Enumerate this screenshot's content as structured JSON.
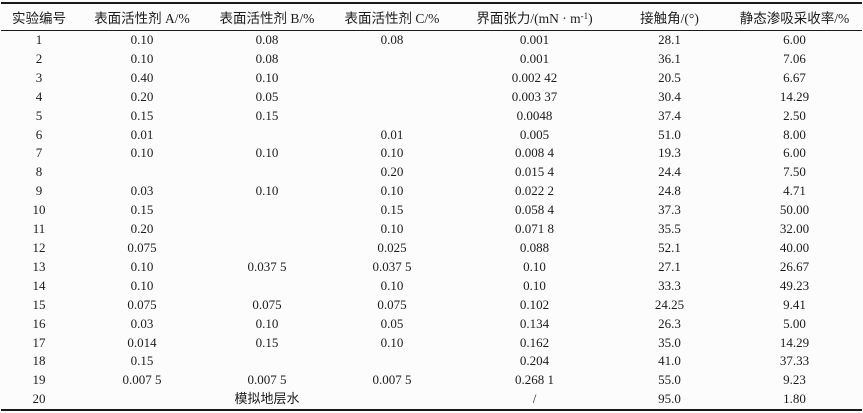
{
  "table": {
    "header": {
      "col_exp_no": "实验编号",
      "col_surfactant_a": "表面活性剂 A/%",
      "col_surfactant_b": "表面活性剂 B/%",
      "col_surfactant_c": "表面活性剂 C/%",
      "col_ift_prefix": "界面张力/(mN · m",
      "col_ift_sup": "-1",
      "col_ift_suffix": ")",
      "col_contact_angle": "接触角/(°)",
      "col_recovery": "静态渗吸采收率/%"
    },
    "rows": [
      [
        "1",
        "0.10",
        "0.08",
        "0.08",
        "0.001",
        "28.1",
        "6.00"
      ],
      [
        "2",
        "0.10",
        "0.08",
        "",
        "0.001",
        "36.1",
        "7.06"
      ],
      [
        "3",
        "0.40",
        "0.10",
        "",
        "0.002 42",
        "20.5",
        "6.67"
      ],
      [
        "4",
        "0.20",
        "0.05",
        "",
        "0.003 37",
        "30.4",
        "14.29"
      ],
      [
        "5",
        "0.15",
        "0.15",
        "",
        "0.0048",
        "37.4",
        "2.50"
      ],
      [
        "6",
        "0.01",
        "",
        "0.01",
        "0.005",
        "51.0",
        "8.00"
      ],
      [
        "7",
        "0.10",
        "0.10",
        "0.10",
        "0.008 4",
        "19.3",
        "6.00"
      ],
      [
        "8",
        "",
        "",
        "0.20",
        "0.015 4",
        "24.4",
        "7.50"
      ],
      [
        "9",
        "0.03",
        "0.10",
        "0.10",
        "0.022 2",
        "24.8",
        "4.71"
      ],
      [
        "10",
        "0.15",
        "",
        "0.15",
        "0.058 4",
        "37.3",
        "50.00"
      ],
      [
        "11",
        "0.20",
        "",
        "0.10",
        "0.071 8",
        "35.5",
        "32.00"
      ],
      [
        "12",
        "0.075",
        "",
        "0.025",
        "0.088",
        "52.1",
        "40.00"
      ],
      [
        "13",
        "0.10",
        "0.037 5",
        "0.037 5",
        "0.10",
        "27.1",
        "26.67"
      ],
      [
        "14",
        "0.10",
        "",
        "0.10",
        "0.10",
        "33.3",
        "49.23"
      ],
      [
        "15",
        "0.075",
        "0.075",
        "0.075",
        "0.102",
        "24.25",
        "9.41"
      ],
      [
        "16",
        "0.03",
        "0.10",
        "0.05",
        "0.134",
        "26.3",
        "5.00"
      ],
      [
        "17",
        "0.014",
        "0.15",
        "0.10",
        "0.162",
        "35.0",
        "14.29"
      ],
      [
        "18",
        "0.15",
        "",
        "",
        "0.204",
        "41.0",
        "37.33"
      ],
      [
        "19",
        "0.007 5",
        "0.007 5",
        "0.007 5",
        "0.268 1",
        "55.0",
        "9.23"
      ],
      [
        "20",
        {
          "t": "模拟地层水",
          "span": 3
        },
        "/",
        "95.0",
        "1.80"
      ]
    ],
    "colors": {
      "background": "#fcfcfc",
      "text": "#1c1c1c",
      "rule": "#1a1a1a"
    }
  }
}
